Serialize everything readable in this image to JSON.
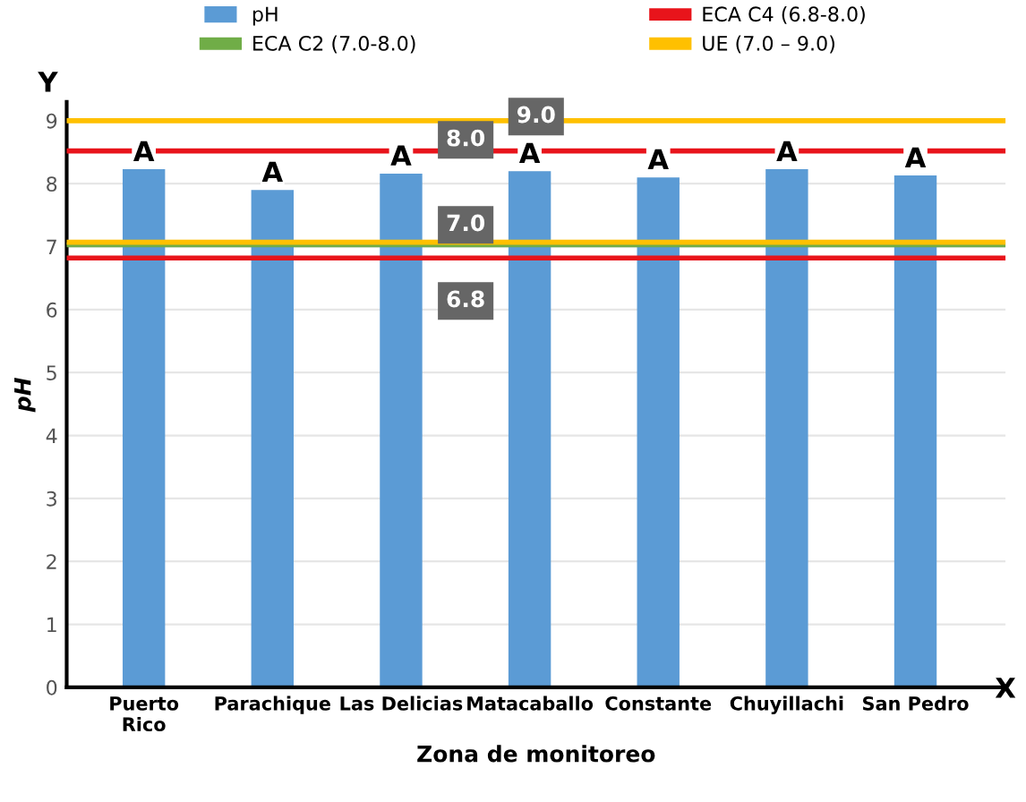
{
  "chart_data": {
    "type": "bar",
    "xlabel": "Zona de monitoreo",
    "ylabel": "pH",
    "categories": [
      "Puerto\nRico",
      "Parachique",
      "Las Delicias",
      "Matacaballo",
      "Constante",
      "Chuyillachi",
      "San Pedro"
    ],
    "series": [
      {
        "name": "pH",
        "color": "#5b9bd5",
        "values": [
          8.23,
          7.9,
          8.16,
          8.2,
          8.1,
          8.23,
          8.13
        ],
        "value_labels": [
          "A",
          "A",
          "A",
          "A",
          "A",
          "A",
          "A"
        ]
      }
    ],
    "ylim": [
      0,
      9.3
    ],
    "yticks": [
      0,
      1,
      2,
      3,
      4,
      5,
      6,
      7,
      8,
      9
    ],
    "grid": "y",
    "legend": "top",
    "ref_lines": [
      {
        "axis": "y",
        "value": 8.52,
        "label": "ECA C4 (6.8-8.0)",
        "color": "#e8141b"
      },
      {
        "axis": "y",
        "value": 7.03,
        "label": "ECA C2 (7.0-8.0)",
        "color": "#70ad47"
      },
      {
        "axis": "y",
        "value": 9.0,
        "label": "UE (7.0 – 9.0)",
        "color": "#ffc000"
      },
      {
        "axis": "y",
        "value": 7.07,
        "color": "#ffc000"
      },
      {
        "axis": "y",
        "value": 6.82,
        "color": "#e8141b"
      }
    ],
    "annotations": [
      "9.0",
      "8.0",
      "7.0",
      "6.8",
      "Y",
      "X"
    ]
  }
}
